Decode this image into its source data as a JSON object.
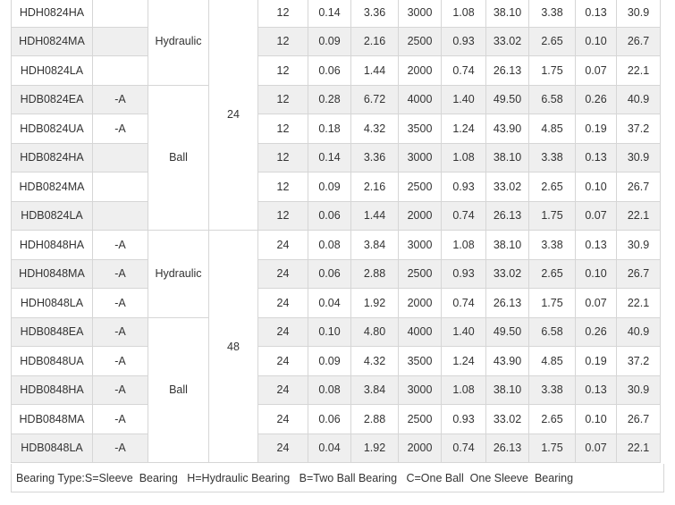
{
  "rows": [
    {
      "model": "HDH0824HA",
      "suffix": "",
      "v": "12",
      "a": "0.14",
      "w": "3.36",
      "rpm": "3000",
      "cmm": "1.08",
      "cfm": "38.10",
      "mm": "3.38",
      "inch": "0.13",
      "db": "30.9"
    },
    {
      "model": "HDH0824MA",
      "suffix": "",
      "v": "12",
      "a": "0.09",
      "w": "2.16",
      "rpm": "2500",
      "cmm": "0.93",
      "cfm": "33.02",
      "mm": "2.65",
      "inch": "0.10",
      "db": "26.7"
    },
    {
      "model": "HDH0824LA",
      "suffix": "",
      "v": "12",
      "a": "0.06",
      "w": "1.44",
      "rpm": "2000",
      "cmm": "0.74",
      "cfm": "26.13",
      "mm": "1.75",
      "inch": "0.07",
      "db": "22.1"
    },
    {
      "model": "HDB0824EA",
      "suffix": "-A",
      "v": "12",
      "a": "0.28",
      "w": "6.72",
      "rpm": "4000",
      "cmm": "1.40",
      "cfm": "49.50",
      "mm": "6.58",
      "inch": "0.26",
      "db": "40.9"
    },
    {
      "model": "HDB0824UA",
      "suffix": "-A",
      "v": "12",
      "a": "0.18",
      "w": "4.32",
      "rpm": "3500",
      "cmm": "1.24",
      "cfm": "43.90",
      "mm": "4.85",
      "inch": "0.19",
      "db": "37.2"
    },
    {
      "model": "HDB0824HA",
      "suffix": "",
      "v": "12",
      "a": "0.14",
      "w": "3.36",
      "rpm": "3000",
      "cmm": "1.08",
      "cfm": "38.10",
      "mm": "3.38",
      "inch": "0.13",
      "db": "30.9"
    },
    {
      "model": "HDB0824MA",
      "suffix": "",
      "v": "12",
      "a": "0.09",
      "w": "2.16",
      "rpm": "2500",
      "cmm": "0.93",
      "cfm": "33.02",
      "mm": "2.65",
      "inch": "0.10",
      "db": "26.7"
    },
    {
      "model": "HDB0824LA",
      "suffix": "",
      "v": "12",
      "a": "0.06",
      "w": "1.44",
      "rpm": "2000",
      "cmm": "0.74",
      "cfm": "26.13",
      "mm": "1.75",
      "inch": "0.07",
      "db": "22.1"
    },
    {
      "model": "HDH0848HA",
      "suffix": "-A",
      "v": "24",
      "a": "0.08",
      "w": "3.84",
      "rpm": "3000",
      "cmm": "1.08",
      "cfm": "38.10",
      "mm": "3.38",
      "inch": "0.13",
      "db": "30.9"
    },
    {
      "model": "HDH0848MA",
      "suffix": "-A",
      "v": "24",
      "a": "0.06",
      "w": "2.88",
      "rpm": "2500",
      "cmm": "0.93",
      "cfm": "33.02",
      "mm": "2.65",
      "inch": "0.10",
      "db": "26.7"
    },
    {
      "model": "HDH0848LA",
      "suffix": "-A",
      "v": "24",
      "a": "0.04",
      "w": "1.92",
      "rpm": "2000",
      "cmm": "0.74",
      "cfm": "26.13",
      "mm": "1.75",
      "inch": "0.07",
      "db": "22.1"
    },
    {
      "model": "HDB0848EA",
      "suffix": "-A",
      "v": "24",
      "a": "0.10",
      "w": "4.80",
      "rpm": "4000",
      "cmm": "1.40",
      "cfm": "49.50",
      "mm": "6.58",
      "inch": "0.26",
      "db": "40.9"
    },
    {
      "model": "HDB0848UA",
      "suffix": "-A",
      "v": "24",
      "a": "0.09",
      "w": "4.32",
      "rpm": "3500",
      "cmm": "1.24",
      "cfm": "43.90",
      "mm": "4.85",
      "inch": "0.19",
      "db": "37.2"
    },
    {
      "model": "HDB0848HA",
      "suffix": "-A",
      "v": "24",
      "a": "0.08",
      "w": "3.84",
      "rpm": "3000",
      "cmm": "1.08",
      "cfm": "38.10",
      "mm": "3.38",
      "inch": "0.13",
      "db": "30.9"
    },
    {
      "model": "HDB0848MA",
      "suffix": "-A",
      "v": "24",
      "a": "0.06",
      "w": "2.88",
      "rpm": "2500",
      "cmm": "0.93",
      "cfm": "33.02",
      "mm": "2.65",
      "inch": "0.10",
      "db": "26.7"
    },
    {
      "model": "HDB0848LA",
      "suffix": "-A",
      "v": "24",
      "a": "0.04",
      "w": "1.92",
      "rpm": "2000",
      "cmm": "0.74",
      "cfm": "26.13",
      "mm": "1.75",
      "inch": "0.07",
      "db": "22.1"
    }
  ],
  "bearing_groups": [
    "Hydraulic",
    "Ball",
    "Hydraulic",
    "Ball"
  ],
  "rated_voltage_groups": [
    "24",
    "48"
  ],
  "footer": "Bearing Type:S=Sleeve  Bearing   H=Hydraulic Bearing   B=Two Ball Bearing   C=One Ball  One Sleeve  Bearing"
}
